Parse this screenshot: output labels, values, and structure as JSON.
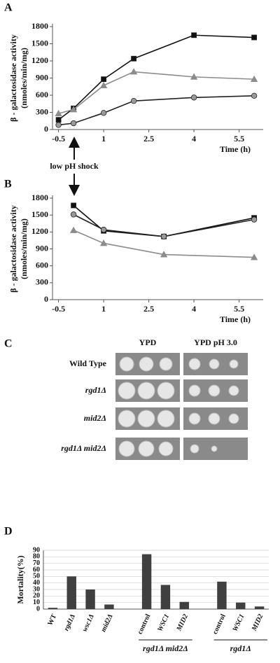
{
  "chart_data": [
    {
      "type": "line",
      "panel_label": "A",
      "ylabel": [
        "β - galactosidase activity",
        "(nmoles/min/mg)"
      ],
      "xlabel": "Time (h)",
      "annotation": "low pH shock",
      "x": [
        -0.5,
        0,
        1,
        2,
        4,
        6
      ],
      "series": [
        {
          "color": "#111111",
          "marker": "square",
          "values": [
            170,
            370,
            880,
            1240,
            1650,
            1610
          ]
        },
        {
          "color": "#8c8c8c",
          "marker": "triangle",
          "values": [
            280,
            350,
            770,
            1010,
            920,
            880
          ]
        },
        {
          "color": "#222222",
          "marker": "circle",
          "values": [
            80,
            110,
            290,
            500,
            560,
            590
          ]
        }
      ],
      "xlim": [
        -0.7,
        6.3
      ],
      "xticks": [
        -0.5,
        1,
        2.5,
        4,
        5.5
      ],
      "ylim": [
        0,
        1800
      ],
      "yticks": [
        0,
        300,
        600,
        900,
        1200,
        1500,
        1800
      ]
    },
    {
      "type": "line",
      "panel_label": "B",
      "ylabel": [
        "β - galactosidase activity",
        "(nmoles/min/mg)"
      ],
      "xlabel": "Time (h)",
      "x": [
        0,
        1,
        3,
        6
      ],
      "series": [
        {
          "color": "#111111",
          "marker": "square",
          "values": [
            1670,
            1220,
            1120,
            1450
          ]
        },
        {
          "color": "#8c8c8c",
          "marker": "triangle",
          "values": [
            1230,
            1000,
            800,
            750
          ]
        },
        {
          "color": "#222222",
          "marker": "circle",
          "values": [
            1510,
            1240,
            1120,
            1420
          ]
        }
      ],
      "xlim": [
        -0.7,
        6.3
      ],
      "xticks": [
        -0.5,
        1,
        2.5,
        4,
        5.5
      ],
      "ylim": [
        0,
        1800
      ],
      "yticks": [
        0,
        300,
        600,
        900,
        1200,
        1500,
        1800
      ]
    },
    {
      "type": "bar",
      "panel_label": "D",
      "ylabel": "Mortality(%)",
      "categories": [
        "WT",
        "rgd1Δ",
        "wsc1Δ",
        "mid2Δ",
        null,
        "control",
        "WSC1",
        "MID2",
        null,
        "control",
        "WSC1",
        "MID2"
      ],
      "values": [
        2,
        50,
        30,
        7,
        null,
        84,
        37,
        11,
        null,
        42,
        10,
        4
      ],
      "groups": [
        "rgd1Δ mid2Δ",
        "rgd1Δ"
      ],
      "color": "#404040",
      "grid": true,
      "ylim": [
        0,
        90
      ],
      "yticks": [
        0,
        10,
        20,
        30,
        40,
        50,
        60,
        70,
        80,
        90
      ]
    }
  ],
  "plate_panel": {
    "panel_label": "C",
    "columns": [
      "YPD",
      "YPD pH 3.0"
    ],
    "rows": [
      "Wild Type",
      "rgd1Δ",
      "mid2Δ",
      "rgd1Δ mid2Δ"
    ]
  }
}
